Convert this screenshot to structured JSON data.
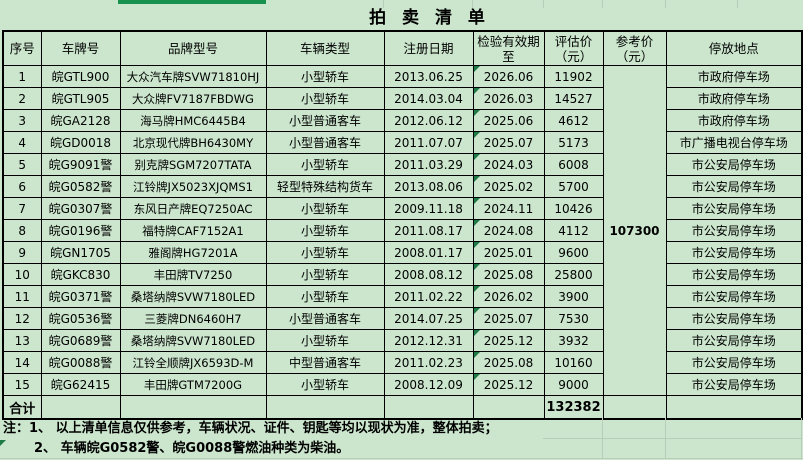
{
  "title": "拍 卖 清 单",
  "columns": [
    "序号",
    "车牌号",
    "品牌型号",
    "车辆类型",
    "注册日期",
    "检验有效期至",
    "评估价（元）",
    "参考价（元）",
    "停放地点"
  ],
  "reference_price_total": "107300",
  "rows": [
    {
      "no": "1",
      "plate": "皖GTL900",
      "model": "大众汽车牌SVW71810HJ",
      "type": "小型轿车",
      "reg_date": "2013.06.25",
      "insp_until": "2026.06",
      "est_price": "11902",
      "location": "市政府停车场"
    },
    {
      "no": "2",
      "plate": "皖GTL905",
      "model": "大众牌FV7187FBDWG",
      "type": "小型轿车",
      "reg_date": "2014.03.04",
      "insp_until": "2026.03",
      "est_price": "14527",
      "location": "市政府停车场"
    },
    {
      "no": "3",
      "plate": "皖GA2128",
      "model": "海马牌HMC6445B4",
      "type": "小型普通客车",
      "reg_date": "2012.06.12",
      "insp_until": "2025.06",
      "est_price": "4612",
      "location": "市政府停车场"
    },
    {
      "no": "4",
      "plate": "皖GD0018",
      "model": "北京现代牌BH6430MY",
      "type": "小型普通客车",
      "reg_date": "2011.07.07",
      "insp_until": "2025.07",
      "est_price": "5173",
      "location": "市广播电视台停车场"
    },
    {
      "no": "5",
      "plate": "皖G9091警",
      "model": "别克牌SGM7207TATA",
      "type": "小型轿车",
      "reg_date": "2011.03.29",
      "insp_until": "2024.03",
      "est_price": "6008",
      "location": "市公安局停车场"
    },
    {
      "no": "6",
      "plate": "皖G0582警",
      "model": "江铃牌JX5023XJQMS1",
      "type": "轻型特殊结构货车",
      "reg_date": "2013.08.06",
      "insp_until": "2025.02",
      "est_price": "5700",
      "location": "市公安局停车场"
    },
    {
      "no": "7",
      "plate": "皖G0307警",
      "model": "东风日产牌EQ7250AC",
      "type": "小型轿车",
      "reg_date": "2009.11.18",
      "insp_until": "2024.11",
      "est_price": "10426",
      "location": "市公安局停车场"
    },
    {
      "no": "8",
      "plate": "皖G0196警",
      "model": "福特牌CAF7152A1",
      "type": "小型轿车",
      "reg_date": "2011.08.17",
      "insp_until": "2024.08",
      "est_price": "4112",
      "location": "市公安局停车场"
    },
    {
      "no": "9",
      "plate": "皖GN1705",
      "model": "雅阁牌HG7201A",
      "type": "小型轿车",
      "reg_date": "2008.01.17",
      "insp_until": "2025.01",
      "est_price": "9600",
      "location": "市公安局停车场"
    },
    {
      "no": "10",
      "plate": "皖GKC830",
      "model": "丰田牌TV7250",
      "type": "小型轿车",
      "reg_date": "2008.08.12",
      "insp_until": "2025.08",
      "est_price": "25800",
      "location": "市公安局停车场"
    },
    {
      "no": "11",
      "plate": "皖G0371警",
      "model": "桑塔纳牌SVW7180LED",
      "type": "小型轿车",
      "reg_date": "2011.02.22",
      "insp_until": "2026.02",
      "est_price": "3900",
      "location": "市公安局停车场"
    },
    {
      "no": "12",
      "plate": "皖G0536警",
      "model": "三菱牌DN6460H7",
      "type": "小型普通客车",
      "reg_date": "2014.07.25",
      "insp_until": "2025.07",
      "est_price": "7530",
      "location": "市公安局停车场"
    },
    {
      "no": "13",
      "plate": "皖G0689警",
      "model": "桑塔纳牌SVW7180LED",
      "type": "小型轿车",
      "reg_date": "2012.12.31",
      "insp_until": "2025.12",
      "est_price": "3932",
      "location": "市公安局停车场"
    },
    {
      "no": "14",
      "plate": "皖G0088警",
      "model": "江铃全顺牌JX6593D-M",
      "type": "中型普通客车",
      "reg_date": "2011.02.23",
      "insp_until": "2025.08",
      "est_price": "10160",
      "location": "市公安局停车场"
    },
    {
      "no": "15",
      "plate": "皖G62415",
      "model": "丰田牌GTM7200G",
      "type": "小型轿车",
      "reg_date": "2008.12.09",
      "insp_until": "2025.12",
      "est_price": "9000",
      "location": "市公安局停车场"
    }
  ],
  "total_row": {
    "label": "合计",
    "est_price_total": "132382"
  },
  "notes": {
    "line1": "注：1、 以上清单信息仅供参考，车辆状况、证件、钥匙等均以现状为准，整体拍卖；",
    "line2": "2、  车辆皖G0582警、皖G0088警燃油种类为柴油。"
  },
  "colors": {
    "cell_background": "#cbe6cd",
    "table_border": "#000000",
    "accent_green": "#17934f",
    "error_flag_green": "#1e7b46",
    "gridline": "#b7cdb9"
  }
}
